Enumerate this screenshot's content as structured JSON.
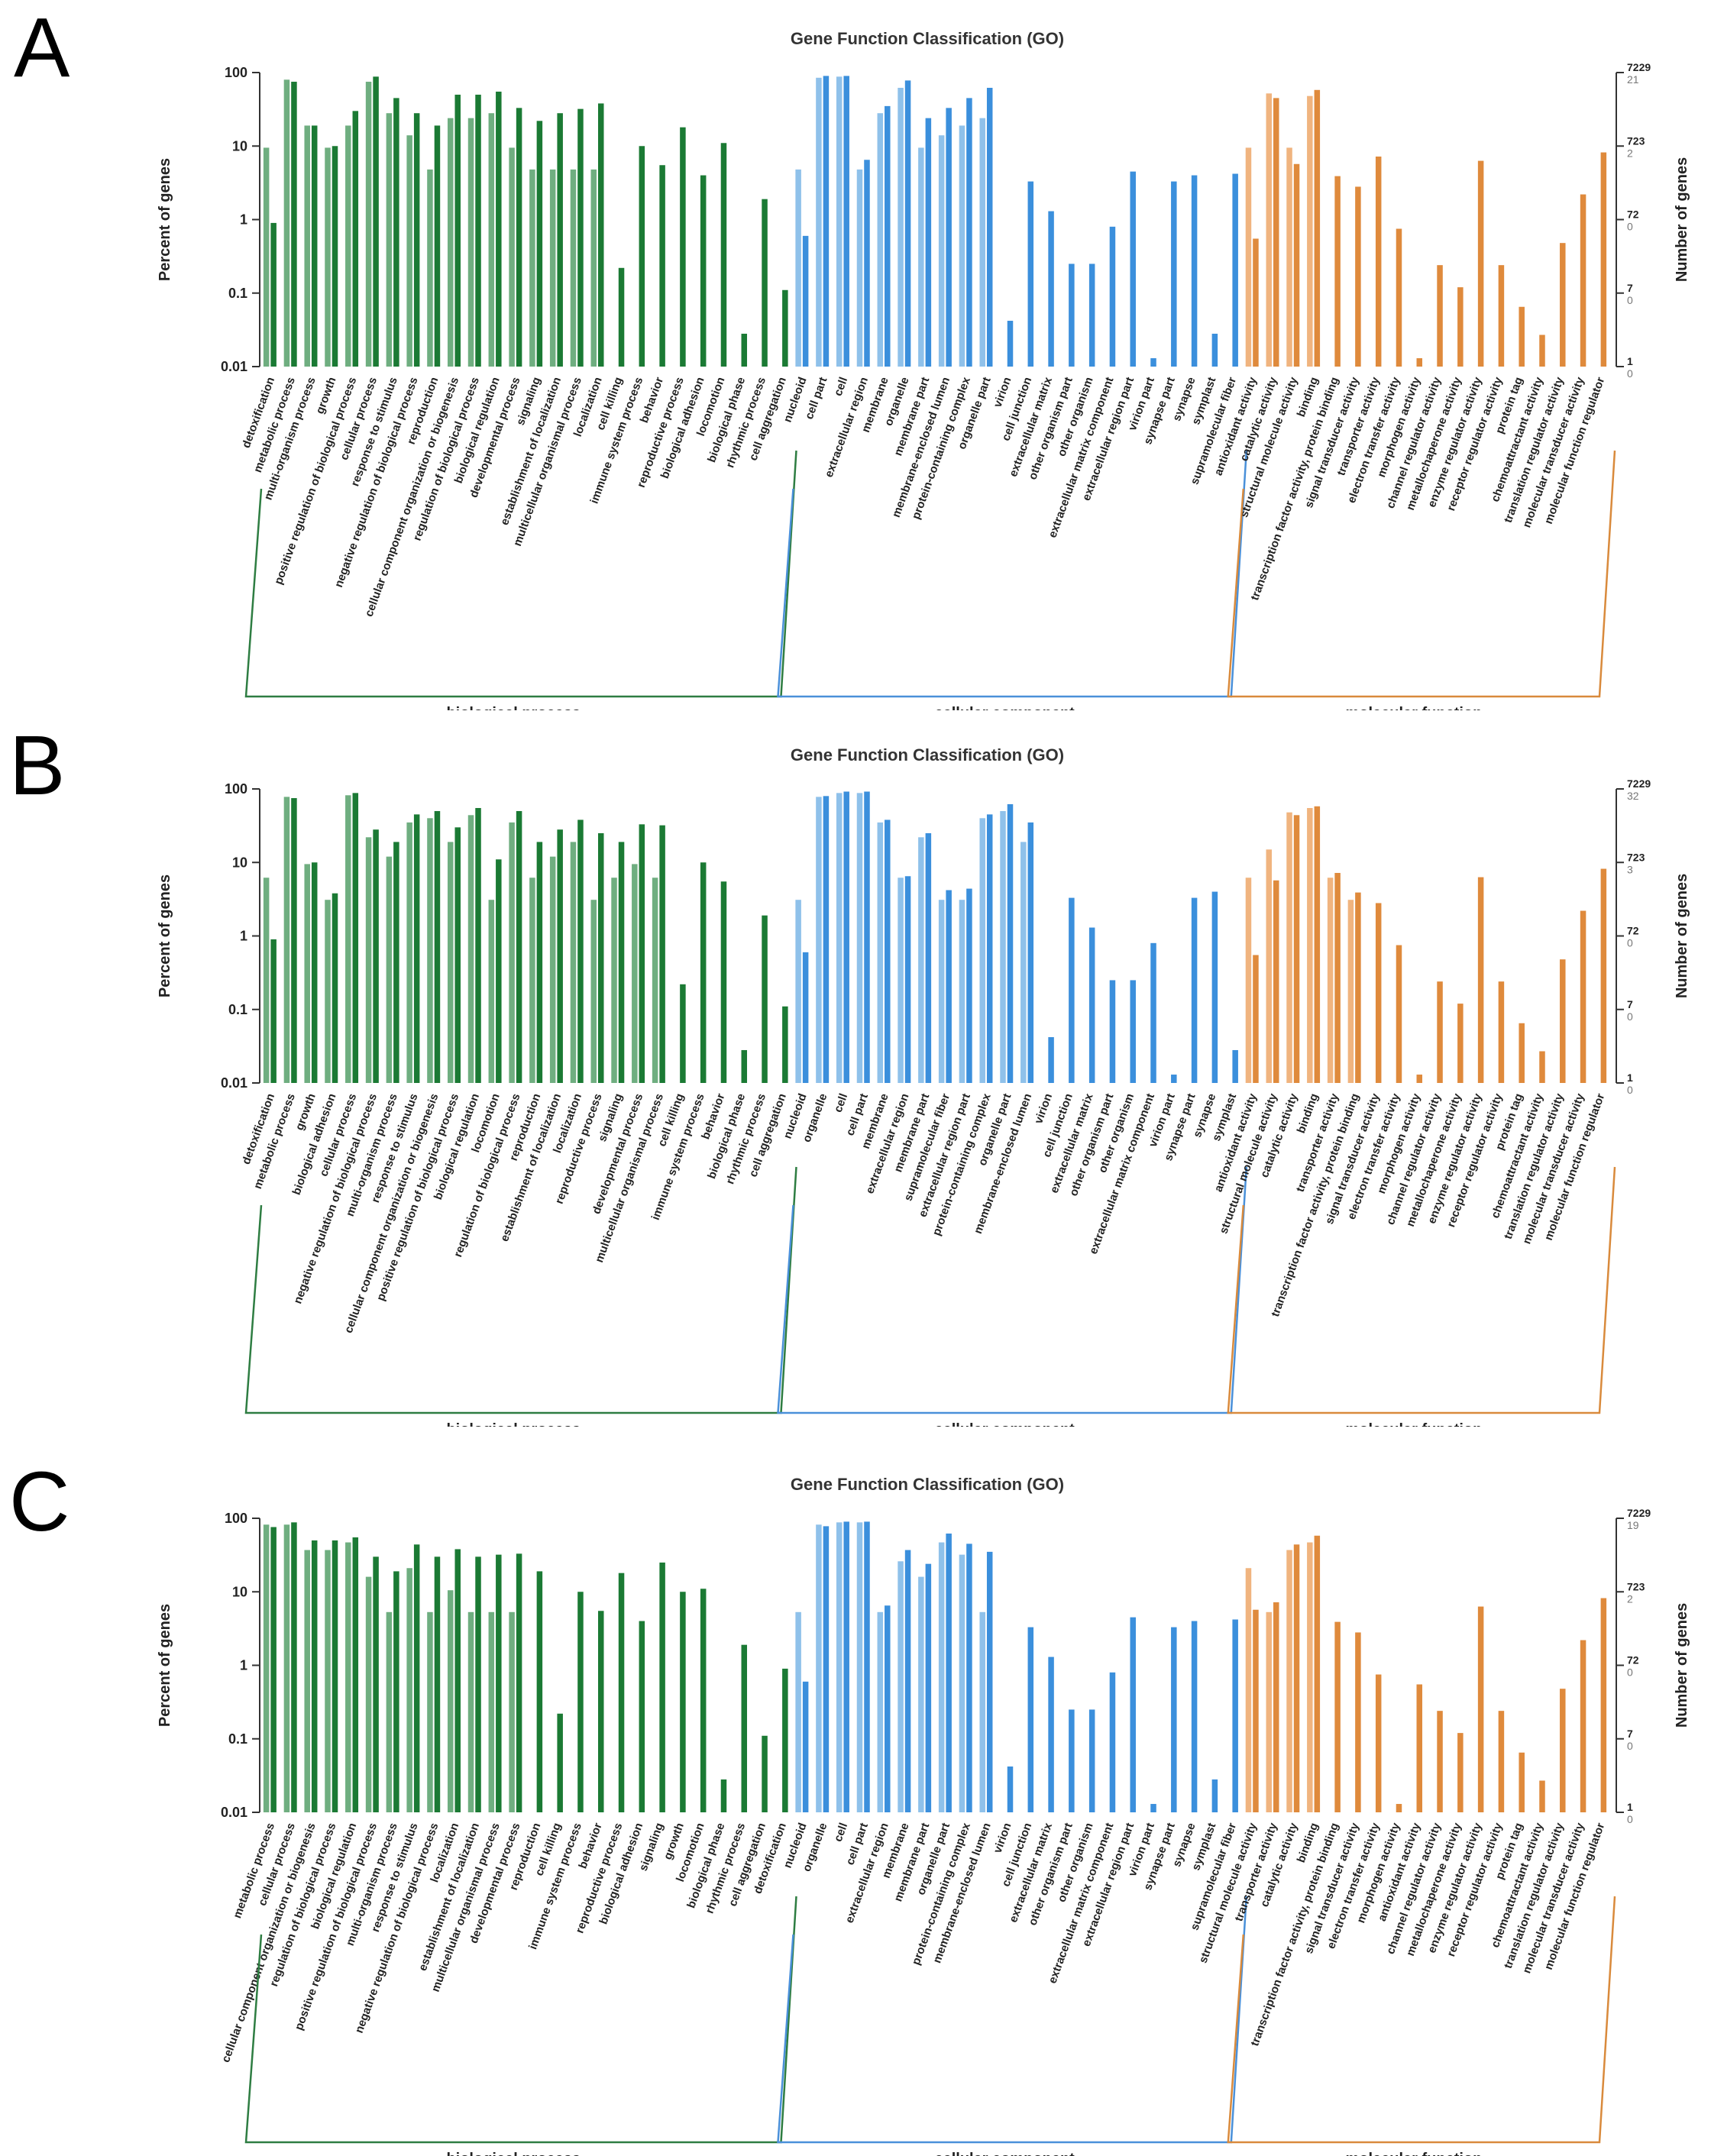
{
  "colors": {
    "bp_light": "#6fae80",
    "bp_dark": "#1b7a34",
    "cc_light": "#8fc1ea",
    "cc_dark": "#3b8fdc",
    "mf_light": "#f0b47f",
    "mf_dark": "#df8a3c",
    "axis": "#333333",
    "bp_bracket": "#2e7d42",
    "cc_bracket": "#4a90d9",
    "mf_bracket": "#d98a3c"
  },
  "chart_data": [
    {
      "type": "bar",
      "panel_label": "A",
      "title": "Gene Function Classification (GO)",
      "ylabel": "Percent of genes",
      "ylabel_right": "Number of genes",
      "yscale": "log",
      "ylim": [
        0.01,
        100
      ],
      "yticks": [
        "100",
        "10",
        "1",
        "0.1",
        "0.01"
      ],
      "right_ticks": [
        {
          "top": "7229",
          "bottom": "21"
        },
        {
          "top": "723",
          "bottom": "2"
        },
        {
          "top": "72",
          "bottom": "0"
        },
        {
          "top": "7",
          "bottom": "0"
        },
        {
          "top": "1",
          "bottom": "0"
        }
      ],
      "groups": [
        {
          "name": "biological process",
          "key": "bp",
          "categories": [
            "detoxification",
            "metabolic process",
            "multi-organism process",
            "growth",
            "positive regulation of biological process",
            "cellular process",
            "response to stimulus",
            "negative regulation of biological process",
            "reproduction",
            "cellular component organization or biogenesis",
            "regulation of biological process",
            "biological regulation",
            "developmental process",
            "signaling",
            "establishment of localization",
            "multicellular organismal process",
            "localization",
            "cell killing",
            "immune system process",
            "behavior",
            "reproductive process",
            "biological adhesion",
            "locomotion",
            "biological phase",
            "rhythmic process",
            "cell aggregation"
          ],
          "light": [
            9.5,
            80,
            19,
            9.5,
            19,
            75,
            28,
            14,
            4.8,
            24,
            24,
            28,
            9.5,
            4.8,
            4.8,
            4.8,
            4.8,
            null,
            null,
            null,
            null,
            null,
            null,
            null,
            null,
            null
          ],
          "dark": [
            0.9,
            75,
            19,
            10,
            30,
            88,
            45,
            28,
            19,
            50,
            50,
            55,
            33,
            22,
            28,
            32,
            38,
            0.22,
            10,
            5.5,
            18,
            4,
            11,
            0.028,
            1.9,
            0.11
          ]
        },
        {
          "name": "cellular component",
          "key": "cc",
          "categories": [
            "nucleoid",
            "cell part",
            "cell",
            "extracellular region",
            "membrane",
            "organelle",
            "membrane part",
            "membrane-enclosed lumen",
            "protein-containing complex",
            "organelle part",
            "virion",
            "cell junction",
            "extracellular matrix",
            "other organism part",
            "other organism",
            "extracellular matrix component",
            "extracellular region part",
            "virion part",
            "synapse part",
            "synapse",
            "symplast",
            "supramolecular fiber"
          ],
          "light": [
            4.8,
            85,
            88,
            4.8,
            28,
            62,
            9.5,
            14,
            19,
            24,
            null,
            null,
            null,
            null,
            null,
            null,
            null,
            null,
            null,
            null,
            null,
            null
          ],
          "dark": [
            0.6,
            90,
            90,
            6.5,
            35,
            78,
            24,
            33,
            45,
            62,
            0.042,
            3.3,
            1.3,
            0.25,
            0.25,
            0.8,
            4.5,
            0.013,
            3.3,
            4,
            0.028,
            4.2
          ]
        },
        {
          "name": "molecular function",
          "key": "mf",
          "categories": [
            "antioxidant activity",
            "catalytic activity",
            "structural molecule activity",
            "binding",
            "transcription factor activity, protein binding",
            "signal transducer activity",
            "transporter activity",
            "electron transfer activity",
            "morphogen activity",
            "channel regulator activity",
            "metallochaperone activity",
            "enzyme regulator activity",
            "receptor regulator activity",
            "protein tag",
            "chemoattractant activity",
            "translation regulator activity",
            "molecular transducer activity",
            "molecular function regulator"
          ],
          "light": [
            9.5,
            52,
            9.5,
            48,
            null,
            null,
            null,
            null,
            null,
            null,
            null,
            null,
            null,
            null,
            null,
            null,
            null,
            null
          ],
          "dark": [
            0.55,
            45,
            5.7,
            58,
            3.9,
            2.8,
            7.2,
            0.75,
            0.013,
            0.24,
            0.12,
            6.3,
            0.24,
            0.065,
            0.027,
            0.48,
            2.2,
            8.2
          ]
        }
      ]
    },
    {
      "type": "bar",
      "panel_label": "B",
      "title": "Gene Function Classification (GO)",
      "ylabel": "Percent of genes",
      "ylabel_right": "Number of genes",
      "yscale": "log",
      "ylim": [
        0.01,
        100
      ],
      "yticks": [
        "100",
        "10",
        "1",
        "0.1",
        "0.01"
      ],
      "right_ticks": [
        {
          "top": "7229",
          "bottom": "32"
        },
        {
          "top": "723",
          "bottom": "3"
        },
        {
          "top": "72",
          "bottom": "0"
        },
        {
          "top": "7",
          "bottom": "0"
        },
        {
          "top": "1",
          "bottom": "0"
        }
      ],
      "groups": [
        {
          "name": "biological process",
          "key": "bp",
          "categories": [
            "detoxification",
            "metabolic process",
            "growth",
            "biological adhesion",
            "cellular process",
            "negative regulation of biological process",
            "multi-organism process",
            "response to stimulus",
            "cellular component organization or biogenesis",
            "positive regulation of biological process",
            "biological regulation",
            "locomotion",
            "regulation of biological process",
            "reproduction",
            "establishment of localization",
            "localization",
            "reproductive process",
            "signaling",
            "developmental process",
            "multicellular organismal process",
            "cell killing",
            "immune system process",
            "behavior",
            "biological phase",
            "rhythmic process",
            "cell aggregation"
          ],
          "light": [
            6.2,
            78,
            9.5,
            3.1,
            82,
            22,
            12,
            35,
            40,
            19,
            44,
            3.1,
            35,
            6.2,
            12,
            19,
            3.1,
            6.2,
            9.5,
            6.2,
            null,
            null,
            null,
            null,
            null,
            null
          ],
          "dark": [
            0.9,
            75,
            10,
            3.8,
            88,
            28,
            19,
            45,
            50,
            30,
            55,
            11,
            50,
            19,
            28,
            38,
            25,
            19,
            33,
            32,
            0.22,
            10,
            5.5,
            0.028,
            1.9,
            0.11
          ]
        },
        {
          "name": "cellular component",
          "key": "cc",
          "categories": [
            "nucleoid",
            "organelle",
            "cell",
            "cell part",
            "membrane",
            "extracellular region",
            "membrane part",
            "supramolecular fiber",
            "extracellular region part",
            "protein-containing complex",
            "organelle part",
            "membrane-enclosed lumen",
            "virion",
            "cell junction",
            "extracellular matrix",
            "other organism part",
            "other organism",
            "extracellular matrix component",
            "virion part",
            "synapse part",
            "synapse",
            "symplast"
          ],
          "light": [
            3.1,
            78,
            88,
            88,
            35,
            6.2,
            22,
            3.1,
            3.1,
            40,
            50,
            19,
            null,
            null,
            null,
            null,
            null,
            null,
            null,
            null,
            null,
            null
          ],
          "dark": [
            0.6,
            80,
            92,
            92,
            38,
            6.5,
            25,
            4.2,
            4.4,
            45,
            62,
            35,
            0.042,
            3.3,
            1.3,
            0.25,
            0.25,
            0.8,
            0.013,
            3.3,
            4,
            0.028
          ]
        },
        {
          "name": "molecular function",
          "key": "mf",
          "categories": [
            "antioxidant activity",
            "structural molecule activity",
            "catalytic activity",
            "binding",
            "transporter activity",
            "transcription factor activity, protein binding",
            "signal transducer activity",
            "electron transfer activity",
            "morphogen activity",
            "channel regulator activity",
            "metallochaperone activity",
            "enzyme regulator activity",
            "receptor regulator activity",
            "protein tag",
            "chemoattractant activity",
            "translation regulator activity",
            "molecular transducer activity",
            "molecular function regulator"
          ],
          "light": [
            6.2,
            15,
            48,
            55,
            6.2,
            3.1,
            null,
            null,
            null,
            null,
            null,
            null,
            null,
            null,
            null,
            null,
            null,
            null
          ],
          "dark": [
            0.55,
            5.7,
            44,
            58,
            7.2,
            3.9,
            2.8,
            0.75,
            0.013,
            0.24,
            0.12,
            6.3,
            0.24,
            0.065,
            0.027,
            0.48,
            2.2,
            8.2
          ]
        }
      ]
    },
    {
      "type": "bar",
      "panel_label": "C",
      "title": "Gene Function Classification (GO)",
      "ylabel": "Percent of genes",
      "ylabel_right": "Number of genes",
      "yscale": "log",
      "ylim": [
        0.01,
        100
      ],
      "yticks": [
        "100",
        "10",
        "1",
        "0.1",
        "0.01"
      ],
      "right_ticks": [
        {
          "top": "7229",
          "bottom": "19"
        },
        {
          "top": "723",
          "bottom": "2"
        },
        {
          "top": "72",
          "bottom": "0"
        },
        {
          "top": "7",
          "bottom": "0"
        },
        {
          "top": "1",
          "bottom": "0"
        }
      ],
      "groups": [
        {
          "name": "biological process",
          "key": "bp",
          "categories": [
            "metabolic process",
            "cellular process",
            "cellular component organization or biogenesis",
            "regulation of biological process",
            "biological regulation",
            "positive regulation of biological process",
            "multi-organism process",
            "response to stimulus",
            "negative regulation of biological process",
            "localization",
            "establishment of localization",
            "multicellular organismal process",
            "developmental process",
            "reproduction",
            "cell killing",
            "immune system process",
            "behavior",
            "reproductive process",
            "biological adhesion",
            "signaling",
            "growth",
            "locomotion",
            "biological phase",
            "rhythmic process",
            "cell aggregation",
            "detoxification"
          ],
          "light": [
            82,
            82,
            37,
            37,
            47,
            16,
            5.3,
            21,
            5.3,
            10.5,
            5.3,
            5.3,
            5.3,
            null,
            null,
            null,
            null,
            null,
            null,
            null,
            null,
            null,
            null,
            null,
            null,
            null
          ],
          "dark": [
            76,
            88,
            50,
            50,
            55,
            30,
            19,
            44,
            30,
            38,
            30,
            32,
            33,
            19,
            0.22,
            10,
            5.5,
            18,
            4,
            25,
            10,
            11,
            0.028,
            1.9,
            0.11,
            0.9
          ]
        },
        {
          "name": "cellular component",
          "key": "cc",
          "categories": [
            "nucleoid",
            "organelle",
            "cell",
            "cell part",
            "extracellular region",
            "membrane",
            "membrane part",
            "organelle part",
            "protein-containing complex",
            "membrane-enclosed lumen",
            "virion",
            "cell junction",
            "extracellular matrix",
            "other organism part",
            "other organism",
            "extracellular matrix component",
            "extracellular region part",
            "virion part",
            "synapse part",
            "synapse",
            "symplast",
            "supramolecular fiber"
          ],
          "light": [
            5.3,
            82,
            88,
            88,
            5.3,
            26,
            16,
            47,
            32,
            5.3,
            null,
            null,
            null,
            null,
            null,
            null,
            null,
            null,
            null,
            null,
            null,
            null
          ],
          "dark": [
            0.6,
            78,
            90,
            90,
            6.5,
            37,
            24,
            62,
            45,
            35,
            0.042,
            3.3,
            1.3,
            0.25,
            0.25,
            0.8,
            4.5,
            0.013,
            3.3,
            4,
            0.028,
            4.2
          ]
        },
        {
          "name": "molecular function",
          "key": "mf",
          "categories": [
            "structural molecule activity",
            "transporter activity",
            "catalytic activity",
            "binding",
            "transcription factor activity, protein binding",
            "signal transducer activity",
            "electron transfer activity",
            "morphogen activity",
            "antioxidant activity",
            "channel regulator activity",
            "metallochaperone activity",
            "enzyme regulator activity",
            "receptor regulator activity",
            "protein tag",
            "chemoattractant activity",
            "translation regulator activity",
            "molecular transducer activity",
            "molecular function regulator"
          ],
          "light": [
            21,
            5.3,
            37,
            47,
            null,
            null,
            null,
            null,
            null,
            null,
            null,
            null,
            null,
            null,
            null,
            null,
            null,
            null
          ],
          "dark": [
            5.7,
            7.2,
            44,
            58,
            3.9,
            2.8,
            0.75,
            0.013,
            0.55,
            0.24,
            0.12,
            6.3,
            0.24,
            0.065,
            0.027,
            0.48,
            2.2,
            8.2
          ]
        }
      ]
    }
  ]
}
